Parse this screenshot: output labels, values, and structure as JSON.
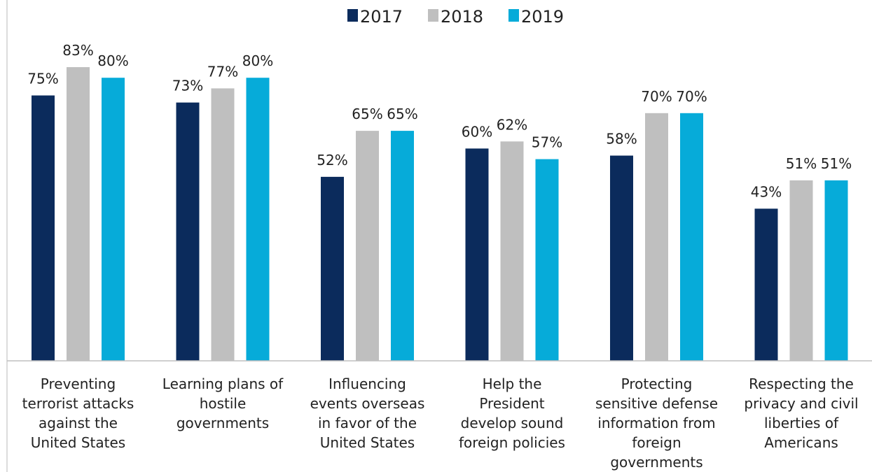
{
  "chart_data": {
    "type": "bar",
    "categories": [
      [
        "Preventing",
        "terrorist attacks",
        "against the",
        "United States"
      ],
      [
        "Learning plans of",
        "hostile",
        "governments"
      ],
      [
        "Influencing",
        "events overseas",
        "in favor of the",
        "United States"
      ],
      [
        "Help the",
        "President",
        "develop sound",
        "foreign policies"
      ],
      [
        "Protecting",
        "sensitive defense",
        "information from",
        "foreign",
        "governments"
      ],
      [
        "Respecting the",
        "privacy and civil",
        "liberties of",
        "Americans"
      ]
    ],
    "series": [
      {
        "name": "2017",
        "color": "#0b2b5c",
        "values": [
          75,
          73,
          52,
          60,
          58,
          43
        ],
        "labels": [
          "75%",
          "73%",
          "52%",
          "60%",
          "58%",
          "43%"
        ]
      },
      {
        "name": "2018",
        "color": "#bfbfbf",
        "values": [
          83,
          77,
          65,
          62,
          70,
          51
        ],
        "labels": [
          "83%",
          "77%",
          "65%",
          "62%",
          "70%",
          "51%"
        ]
      },
      {
        "name": "2019",
        "color": "#06abd9",
        "values": [
          80,
          80,
          65,
          57,
          70,
          51
        ],
        "labels": [
          "80%",
          "80%",
          "65%",
          "57%",
          "70%",
          "51%"
        ]
      }
    ],
    "ylim": [
      0,
      100
    ],
    "legend_position": "top-center",
    "grid": false
  }
}
